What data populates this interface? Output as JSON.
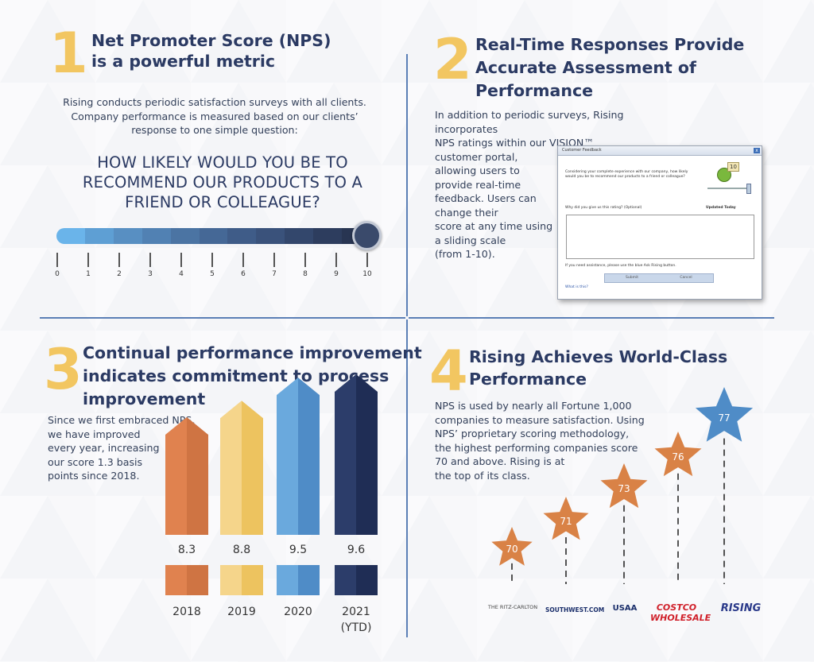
{
  "section1": {
    "number": "1",
    "title_line1": "Net Promoter Score (NPS)",
    "title_line2": "is a powerful metric",
    "body_line1": "Rising conducts periodic satisfaction surveys with all clients.",
    "body_line2": "Company performance is measured based on our clients’",
    "body_line3": "response to one simple question:",
    "question_line1": "HOW LIKELY WOULD YOU BE TO",
    "question_line2": "RECOMMEND OUR PRODUCTS TO A",
    "question_line3": "FRIEND OR COLLEAGUE?",
    "scale_labels": [
      "0",
      "1",
      "2",
      "3",
      "4",
      "5",
      "6",
      "7",
      "8",
      "9",
      "10"
    ],
    "scale_value": 10
  },
  "section2": {
    "number": "2",
    "title_line1": "Real-Time Responses Provide",
    "title_line2": "Accurate Assessment of",
    "title_line3": "Performance",
    "body_lines": [
      "In addition to periodic surveys, Rising incorporates",
      "NPS ratings within our VISION™",
      "customer portal,",
      "allowing users to",
      "provide real-time",
      "feedback. Users can",
      "change their",
      "score at any time using",
      "a sliding scale",
      "(from 1-10)."
    ],
    "dialog": {
      "title": "Customer Feedback",
      "close": "x",
      "prompt_line1": "Considering your complete experience with our company, how likely",
      "prompt_line2": "would you be to recommend our products to a friend or colleague?",
      "score": "10",
      "why_label": "Why did you give us this rating? (Optional)",
      "updated_label": "Updated Today",
      "assist_text": "If you need assistance, please use the blue Ask Rising button.",
      "submit_label": "Submit",
      "cancel_label": "Cancel",
      "what_link": "What is this?"
    }
  },
  "section3": {
    "number": "3",
    "title_line1": "Continual performance improvement",
    "title_line2": "indicates commitment to process",
    "title_line3": "improvement",
    "body_lines": [
      "Since we first embraced NPS,",
      "we have improved",
      "every year, increasing",
      "our score 1.3 basis",
      "points since 2018."
    ],
    "bars": [
      {
        "year": "2018",
        "year2": "",
        "value": "8.3",
        "score": 8.3,
        "light": "#e0824f",
        "dark": "#cf7443"
      },
      {
        "year": "2019",
        "year2": "",
        "value": "8.8",
        "score": 8.8,
        "light": "#f5d58b",
        "dark": "#edc35f"
      },
      {
        "year": "2020",
        "year2": "",
        "value": "9.5",
        "score": 9.5,
        "light": "#6aa9dd",
        "dark": "#4f8cc7"
      },
      {
        "year": "2021",
        "year2": "(YTD)",
        "value": "9.6",
        "score": 9.6,
        "light": "#2c3d6a",
        "dark": "#1f2d55"
      }
    ]
  },
  "section4": {
    "number": "4",
    "title_line1": "Rising Achieves World-Class",
    "title_line2": "Performance",
    "body_lines": [
      "NPS is used by nearly all Fortune 1,000",
      "companies to measure satisfaction. Using",
      "NPS’ proprietary scoring methodology,",
      "the highest performing companies score",
      "70 and above. Rising is at",
      "the top of its class."
    ],
    "stars": [
      {
        "value": "70",
        "color": "#d98246",
        "company": "THE RITZ-CARLTON"
      },
      {
        "value": "71",
        "color": "#d98246",
        "company": "SOUTHWEST.COM"
      },
      {
        "value": "73",
        "color": "#d98246",
        "company": "USAA"
      },
      {
        "value": "76",
        "color": "#d98246",
        "company": "COSTCO WHOLESALE"
      },
      {
        "value": "77",
        "color": "#4f8cc7",
        "company": "RISING"
      }
    ]
  },
  "colors": {
    "number_gold": "#f2c661",
    "title_navy": "#2b3a63",
    "divider_blue": "#5b7fb6"
  }
}
